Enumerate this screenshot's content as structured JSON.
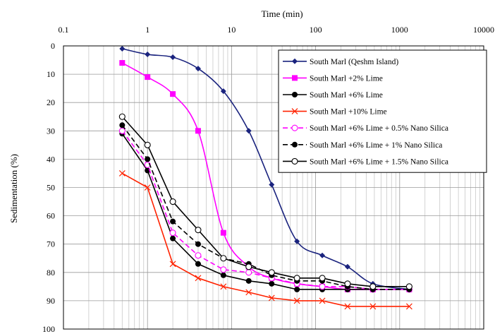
{
  "chart_data": {
    "type": "line",
    "xlabel": "Time (min)",
    "ylabel": "Sedimentation (%)",
    "xscale": "log",
    "xlim": [
      0.1,
      10000
    ],
    "ylim": [
      0,
      100
    ],
    "y_inverted": true,
    "x_axis_position": "top",
    "grid": true,
    "legend_position": "top-right",
    "xticks": [
      "0.1",
      "1",
      "10",
      "100",
      "1000",
      "10000"
    ],
    "yticks": [
      "0",
      "10",
      "20",
      "30",
      "40",
      "50",
      "60",
      "70",
      "80",
      "90",
      "100"
    ],
    "series": [
      {
        "name": "South Marl (Qeshm Island)",
        "color": "#1a237e",
        "marker": "diamond",
        "dash": "solid",
        "curve": true,
        "x": [
          0.5,
          1,
          2,
          4,
          8,
          16,
          30,
          60,
          120,
          240,
          480,
          1300
        ],
        "y": [
          1,
          3,
          4,
          8,
          16,
          30,
          49,
          69,
          74,
          78,
          84,
          86
        ]
      },
      {
        "name": "South Marl +2% Lime",
        "color": "#ff00ff",
        "marker": "square",
        "dash": "solid",
        "curve": true,
        "x": [
          0.5,
          1,
          2,
          4,
          8,
          16,
          30,
          60,
          120,
          240,
          480,
          1300
        ],
        "y": [
          6,
          11,
          17,
          30,
          66,
          78,
          82,
          84,
          85,
          86,
          86,
          86
        ]
      },
      {
        "name": "South Marl +6% Lime",
        "color": "#000000",
        "marker": "circle-filled",
        "dash": "solid",
        "curve": false,
        "x": [
          0.5,
          1,
          2,
          4,
          8,
          16,
          30,
          60,
          120,
          240,
          480,
          1300
        ],
        "y": [
          31,
          44,
          68,
          77,
          81,
          83,
          84,
          86,
          86,
          86,
          86,
          86
        ]
      },
      {
        "name": "South Marl +10% Lime",
        "color": "#ff2200",
        "marker": "x",
        "dash": "solid",
        "curve": false,
        "x": [
          0.5,
          1,
          2,
          4,
          8,
          16,
          30,
          60,
          120,
          240,
          480,
          1300
        ],
        "y": [
          45,
          50,
          77,
          82,
          85,
          87,
          89,
          90,
          90,
          92,
          92,
          92
        ]
      },
      {
        "name": "South Marl +6% Lime + 0.5% Nano Silica",
        "color": "#ff00ff",
        "marker": "circle-open",
        "dash": "dashed",
        "curve": false,
        "x": [
          0.5,
          1,
          2,
          4,
          8,
          16,
          30,
          60,
          120,
          240,
          480,
          1300
        ],
        "y": [
          30,
          42,
          66,
          74,
          79,
          80,
          82,
          84,
          85,
          85,
          86,
          86
        ]
      },
      {
        "name": "South Marl +6% Lime + 1%    Nano Silica",
        "color": "#000000",
        "marker": "circle-filled",
        "dash": "dashed",
        "curve": false,
        "x": [
          0.5,
          1,
          2,
          4,
          8,
          16,
          30,
          60,
          120,
          240,
          480,
          1300
        ],
        "y": [
          28,
          40,
          62,
          70,
          75,
          77,
          81,
          83,
          83,
          85,
          86,
          86
        ]
      },
      {
        "name": "South Marl +6% Lime + 1.5% Nano Silica",
        "color": "#000000",
        "marker": "circle-open",
        "dash": "solid",
        "curve": false,
        "x": [
          0.5,
          1,
          2,
          4,
          8,
          16,
          30,
          60,
          120,
          240,
          480,
          1300
        ],
        "y": [
          25,
          35,
          55,
          65,
          75,
          78,
          80,
          82,
          82,
          84,
          85,
          85
        ]
      }
    ]
  }
}
